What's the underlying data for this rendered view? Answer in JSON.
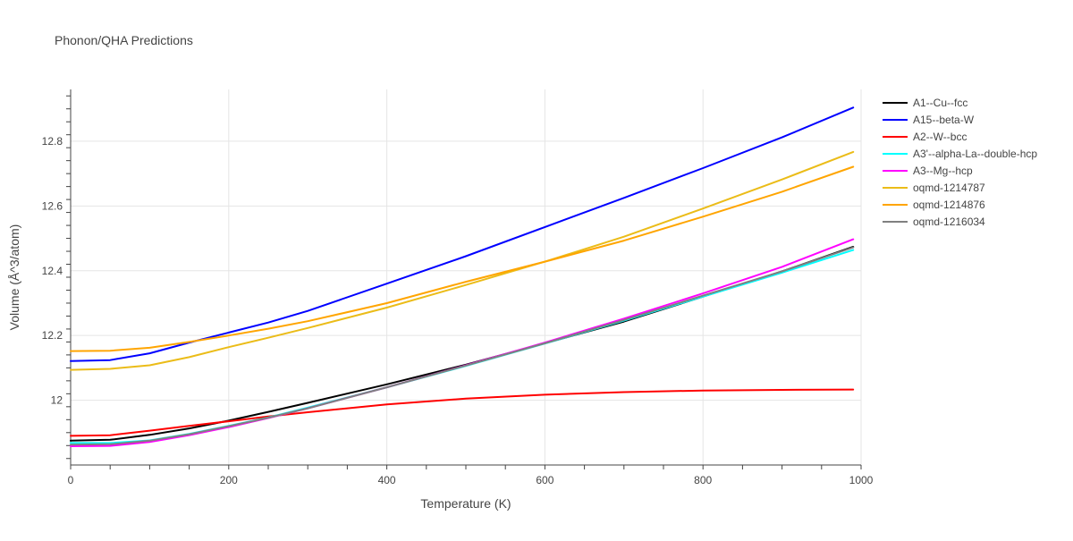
{
  "chart_data": {
    "type": "line",
    "title": "Phonon/QHA Predictions",
    "xlabel": "Temperature (K)",
    "ylabel": "Volume (Å^3/atom)",
    "xlim": [
      0,
      1000
    ],
    "ylim": [
      11.8,
      12.96
    ],
    "x_ticks": [
      0,
      200,
      400,
      600,
      800,
      1000
    ],
    "x_tick_labels": [
      "0",
      "200",
      "400",
      "600",
      "800",
      "1000"
    ],
    "y_ticks": [
      12.0,
      12.2,
      12.4,
      12.6,
      12.8
    ],
    "y_tick_labels": [
      "12",
      "12.2",
      "12.4",
      "12.6",
      "12.8"
    ],
    "grid": true,
    "legend_position": "right",
    "x": [
      0,
      50,
      100,
      150,
      200,
      250,
      300,
      400,
      500,
      600,
      700,
      800,
      900,
      990
    ],
    "series": [
      {
        "name": "A1--Cu--fcc",
        "color": "#000000",
        "values": [
          11.875,
          11.878,
          11.893,
          11.913,
          11.937,
          11.964,
          11.992,
          12.049,
          12.11,
          12.176,
          12.243,
          12.32,
          12.398,
          12.474
        ]
      },
      {
        "name": "A15--beta-W",
        "color": "#0000ff",
        "values": [
          12.121,
          12.124,
          12.145,
          12.178,
          12.209,
          12.24,
          12.276,
          12.36,
          12.445,
          12.535,
          12.625,
          12.717,
          12.812,
          12.904
        ]
      },
      {
        "name": "A2--W--bcc",
        "color": "#ff0000",
        "values": [
          11.89,
          11.892,
          11.906,
          11.921,
          11.935,
          11.95,
          11.963,
          11.987,
          12.005,
          12.017,
          12.025,
          12.03,
          12.032,
          12.033
        ]
      },
      {
        "name": "A3'--alpha-La--double-hcp",
        "color": "#00ffff",
        "values": [
          11.868,
          11.868,
          11.876,
          11.896,
          11.921,
          11.947,
          11.977,
          12.04,
          12.106,
          12.175,
          12.246,
          12.32,
          12.394,
          12.464
        ]
      },
      {
        "name": "A3--Mg--hcp",
        "color": "#ff00ff",
        "values": [
          11.858,
          11.859,
          11.871,
          11.892,
          11.917,
          11.945,
          11.975,
          12.04,
          12.108,
          12.178,
          12.252,
          12.33,
          12.412,
          12.497
        ]
      },
      {
        "name": "oqmd-1214787",
        "color": "#ebbc18",
        "values": [
          12.094,
          12.097,
          12.108,
          12.133,
          12.164,
          12.193,
          12.223,
          12.286,
          12.356,
          12.428,
          12.505,
          12.592,
          12.682,
          12.767
        ]
      },
      {
        "name": "oqmd-1214876",
        "color": "#ffa500",
        "values": [
          12.152,
          12.153,
          12.162,
          12.18,
          12.2,
          12.221,
          12.244,
          12.3,
          12.366,
          12.428,
          12.493,
          12.567,
          12.644,
          12.721
        ]
      },
      {
        "name": "oqmd-1216034",
        "color": "#808080",
        "values": [
          11.863,
          11.864,
          11.875,
          11.895,
          11.92,
          11.946,
          11.975,
          12.04,
          12.107,
          12.176,
          12.248,
          12.323,
          12.398,
          12.472
        ]
      }
    ]
  }
}
